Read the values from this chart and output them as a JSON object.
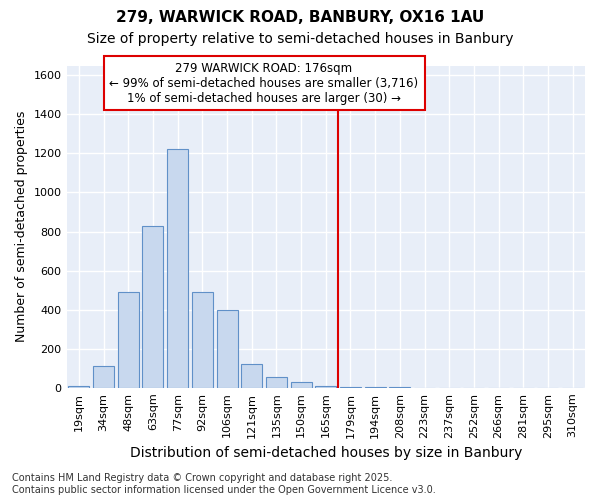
{
  "title1": "279, WARWICK ROAD, BANBURY, OX16 1AU",
  "title2": "Size of property relative to semi-detached houses in Banbury",
  "xlabel": "Distribution of semi-detached houses by size in Banbury",
  "ylabel": "Number of semi-detached properties",
  "footnote1": "Contains HM Land Registry data © Crown copyright and database right 2025.",
  "footnote2": "Contains public sector information licensed under the Open Government Licence v3.0.",
  "annotation_title": "279 WARWICK ROAD: 176sqm",
  "annotation_line1": "← 99% of semi-detached houses are smaller (3,716)",
  "annotation_line2": "1% of semi-detached houses are larger (30) →",
  "bar_labels": [
    "19sqm",
    "34sqm",
    "48sqm",
    "63sqm",
    "77sqm",
    "92sqm",
    "106sqm",
    "121sqm",
    "135sqm",
    "150sqm",
    "165sqm",
    "179sqm",
    "194sqm",
    "208sqm",
    "223sqm",
    "237sqm",
    "252sqm",
    "266sqm",
    "281sqm",
    "295sqm",
    "310sqm"
  ],
  "bar_values": [
    10,
    110,
    490,
    830,
    1220,
    490,
    400,
    120,
    55,
    30,
    10,
    5,
    5,
    5,
    0,
    0,
    0,
    0,
    0,
    0,
    0
  ],
  "bar_color": "#c8d8ee",
  "bar_edge_color": "#6090c8",
  "vline_x": 11.0,
  "vline_color": "#dd0000",
  "ylim": [
    0,
    1650
  ],
  "yticks": [
    0,
    200,
    400,
    600,
    800,
    1000,
    1200,
    1400,
    1600
  ],
  "fig_background": "#ffffff",
  "plot_background": "#e8eef8",
  "grid_color": "#ffffff",
  "ann_box_edge": "#dd0000",
  "ann_box_face": "#ffffff",
  "title1_fontsize": 11,
  "title2_fontsize": 10,
  "xlabel_fontsize": 10,
  "ylabel_fontsize": 9,
  "tick_fontsize": 8,
  "ann_fontsize": 8.5,
  "footnote_fontsize": 7
}
